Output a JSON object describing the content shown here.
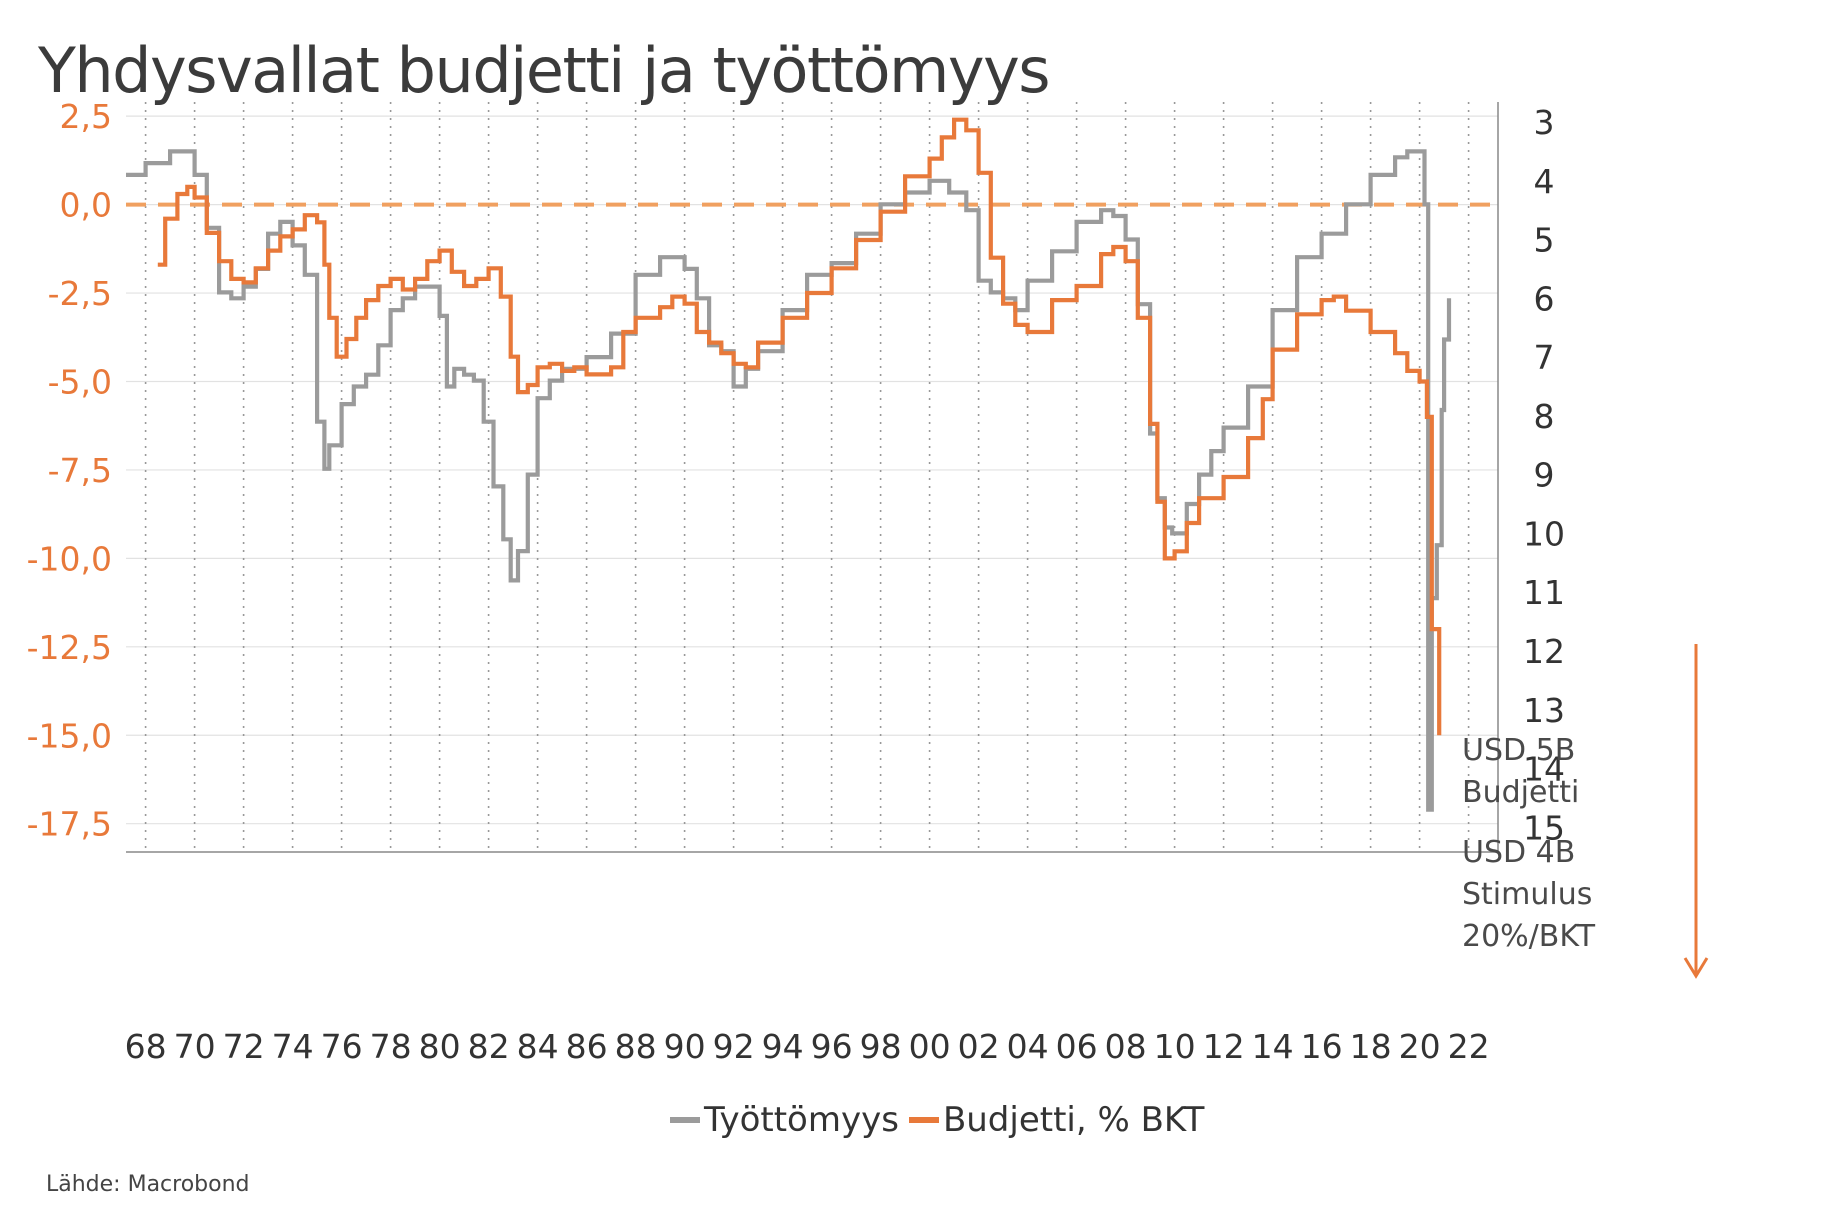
{
  "title": "Yhdysvallat budjetti ja työttömyys",
  "source": "Lähde: Macrobond",
  "colors": {
    "unemployment": "#9b9b9b",
    "budget": "#e8793a",
    "left_axis_text": "#e8793a",
    "zero_line": "#f0a060"
  },
  "legend": [
    {
      "name": "Työttömyys",
      "color": "#9b9b9b"
    },
    {
      "name": "Budjetti, % BKT",
      "color": "#e8793a"
    }
  ],
  "annotation": {
    "lines": [
      "USD 5B",
      "Budjetti",
      "USD 4B",
      "Stimulus",
      "20%/BKT"
    ],
    "arrow": "down-arrow"
  },
  "chart_data": {
    "type": "line",
    "title": "Yhdysvallat budjetti ja työttömyys",
    "grid": true,
    "legend_position": "bottom-center",
    "x_axis": {
      "range": [
        1967.2,
        2023.2
      ],
      "ticks": [
        1968,
        1970,
        1972,
        1974,
        1976,
        1978,
        1980,
        1982,
        1984,
        1986,
        1988,
        1990,
        1992,
        1994,
        1996,
        1998,
        2000,
        2002,
        2004,
        2006,
        2008,
        2010,
        2012,
        2014,
        2016,
        2018,
        2020,
        2022
      ],
      "tick_labels": [
        "68",
        "70",
        "72",
        "74",
        "76",
        "78",
        "80",
        "82",
        "84",
        "86",
        "88",
        "90",
        "92",
        "94",
        "96",
        "98",
        "00",
        "02",
        "04",
        "06",
        "08",
        "10",
        "12",
        "14",
        "16",
        "18",
        "20",
        "22"
      ]
    },
    "y_left": {
      "range": [
        -18.3,
        2.9
      ],
      "ticks": [
        2.5,
        0,
        -2.5,
        -5,
        -7.5,
        -10,
        -12.5,
        -15,
        -17.5
      ],
      "tick_labels": [
        "2,5",
        "0,0",
        "-2,5",
        "-5,0",
        "-7,5",
        "-10,0",
        "-12,5",
        "-15,0",
        "-17,5"
      ]
    },
    "y_right": {
      "inverted": true,
      "range": [
        2.66,
        15.42
      ],
      "ticks": [
        3,
        4,
        5,
        6,
        7,
        8,
        9,
        10,
        11,
        12,
        13,
        14,
        15
      ],
      "tick_labels": [
        "3",
        "4",
        "5",
        "6",
        "7",
        "8",
        "9",
        "10",
        "11",
        "12",
        "13",
        "14",
        "15"
      ]
    },
    "reference_line": {
      "axis": "left",
      "value": 0,
      "style": "dashed"
    },
    "series": [
      {
        "name": "Työttömyys",
        "axis": "right",
        "x": [
          1967.2,
          1968.0,
          1969.0,
          1969.5,
          1970.0,
          1970.5,
          1971.0,
          1971.5,
          1972.0,
          1972.5,
          1973.0,
          1973.5,
          1974.0,
          1974.5,
          1975.0,
          1975.3,
          1975.5,
          1976.0,
          1976.5,
          1977.0,
          1977.5,
          1978.0,
          1978.5,
          1979.0,
          1979.5,
          1980.0,
          1980.3,
          1980.6,
          1981.0,
          1981.4,
          1981.8,
          1982.2,
          1982.6,
          1982.9,
          1983.2,
          1983.6,
          1984.0,
          1984.5,
          1985.0,
          1986.0,
          1987.0,
          1988.0,
          1989.0,
          1989.5,
          1990.0,
          1990.5,
          1991.0,
          1991.5,
          1992.0,
          1992.5,
          1993.0,
          1994.0,
          1995.0,
          1996.0,
          1997.0,
          1998.0,
          1999.0,
          2000.0,
          2000.8,
          2001.5,
          2002.0,
          2002.5,
          2003.0,
          2003.5,
          2004.0,
          2005.0,
          2006.0,
          2007.0,
          2007.5,
          2008.0,
          2008.5,
          2009.0,
          2009.3,
          2009.6,
          2009.9,
          2010.5,
          2011.0,
          2011.5,
          2012.0,
          2013.0,
          2014.0,
          2015.0,
          2016.0,
          2017.0,
          2018.0,
          2019.0,
          2019.5,
          2020.0,
          2020.2,
          2020.35,
          2020.5,
          2020.7,
          2020.9,
          2021.0,
          2021.2
        ],
        "values": [
          3.9,
          3.7,
          3.5,
          3.5,
          3.9,
          4.8,
          5.9,
          6.0,
          5.8,
          5.5,
          4.9,
          4.7,
          5.1,
          5.6,
          8.1,
          8.9,
          8.5,
          7.8,
          7.5,
          7.3,
          6.8,
          6.2,
          6.0,
          5.8,
          5.8,
          6.3,
          7.5,
          7.2,
          7.3,
          7.4,
          8.1,
          9.2,
          10.1,
          10.8,
          10.3,
          9.0,
          7.7,
          7.4,
          7.2,
          7.0,
          6.6,
          5.6,
          5.3,
          5.3,
          5.5,
          6.0,
          6.8,
          6.9,
          7.5,
          7.2,
          6.9,
          6.2,
          5.6,
          5.4,
          4.9,
          4.4,
          4.2,
          4.0,
          4.2,
          4.5,
          5.7,
          5.9,
          6.0,
          6.2,
          5.7,
          5.2,
          4.7,
          4.5,
          4.6,
          5.0,
          6.1,
          8.3,
          9.4,
          9.9,
          10.0,
          9.5,
          9.0,
          8.6,
          8.2,
          7.5,
          6.2,
          5.3,
          4.9,
          4.4,
          3.9,
          3.6,
          3.5,
          3.5,
          4.4,
          14.7,
          11.1,
          10.2,
          7.9,
          6.7,
          6.0
        ]
      },
      {
        "name": "Budjetti, % BKT",
        "axis": "left",
        "x": [
          1968.5,
          1968.8,
          1969.3,
          1969.7,
          1970.0,
          1970.5,
          1971.0,
          1971.5,
          1972.0,
          1972.5,
          1973.0,
          1973.5,
          1974.0,
          1974.5,
          1975.0,
          1975.3,
          1975.5,
          1975.8,
          1976.2,
          1976.6,
          1977.0,
          1977.5,
          1978.0,
          1978.5,
          1979.0,
          1979.5,
          1980.0,
          1980.5,
          1981.0,
          1981.5,
          1982.0,
          1982.5,
          1982.9,
          1983.2,
          1983.6,
          1984.0,
          1984.5,
          1985.0,
          1985.5,
          1986.0,
          1986.5,
          1987.0,
          1987.5,
          1988.0,
          1989.0,
          1989.5,
          1990.0,
          1990.5,
          1991.0,
          1991.5,
          1992.0,
          1992.5,
          1993.0,
          1994.0,
          1995.0,
          1996.0,
          1997.0,
          1998.0,
          1999.0,
          2000.0,
          2000.5,
          2001.0,
          2001.5,
          2002.0,
          2002.5,
          2003.0,
          2003.5,
          2004.0,
          2005.0,
          2006.0,
          2007.0,
          2007.5,
          2008.0,
          2008.5,
          2009.0,
          2009.3,
          2009.6,
          2010.0,
          2010.5,
          2011.0,
          2012.0,
          2013.0,
          2013.6,
          2014.0,
          2015.0,
          2016.0,
          2016.5,
          2017.0,
          2018.0,
          2019.0,
          2019.5,
          2020.0,
          2020.3,
          2020.5,
          2020.8
        ],
        "values": [
          -1.7,
          -0.4,
          0.3,
          0.5,
          0.2,
          -0.8,
          -1.6,
          -2.1,
          -2.2,
          -1.8,
          -1.3,
          -0.9,
          -0.7,
          -0.3,
          -0.5,
          -1.7,
          -3.2,
          -4.3,
          -3.8,
          -3.2,
          -2.7,
          -2.3,
          -2.1,
          -2.4,
          -2.1,
          -1.6,
          -1.3,
          -1.9,
          -2.3,
          -2.1,
          -1.8,
          -2.6,
          -4.3,
          -5.3,
          -5.1,
          -4.6,
          -4.5,
          -4.7,
          -4.6,
          -4.8,
          -4.8,
          -4.6,
          -3.6,
          -3.2,
          -2.9,
          -2.6,
          -2.8,
          -3.6,
          -3.9,
          -4.2,
          -4.5,
          -4.6,
          -3.9,
          -3.2,
          -2.5,
          -1.8,
          -1.0,
          -0.2,
          0.8,
          1.3,
          1.9,
          2.4,
          2.1,
          0.9,
          -1.5,
          -2.8,
          -3.4,
          -3.6,
          -2.7,
          -2.3,
          -1.4,
          -1.2,
          -1.6,
          -3.2,
          -6.2,
          -8.4,
          -10.0,
          -9.8,
          -9.0,
          -8.3,
          -7.7,
          -6.6,
          -5.5,
          -4.1,
          -3.1,
          -2.7,
          -2.6,
          -3.0,
          -3.6,
          -4.2,
          -4.7,
          -5.0,
          -6.0,
          -12.0,
          -15.0
        ]
      }
    ]
  }
}
